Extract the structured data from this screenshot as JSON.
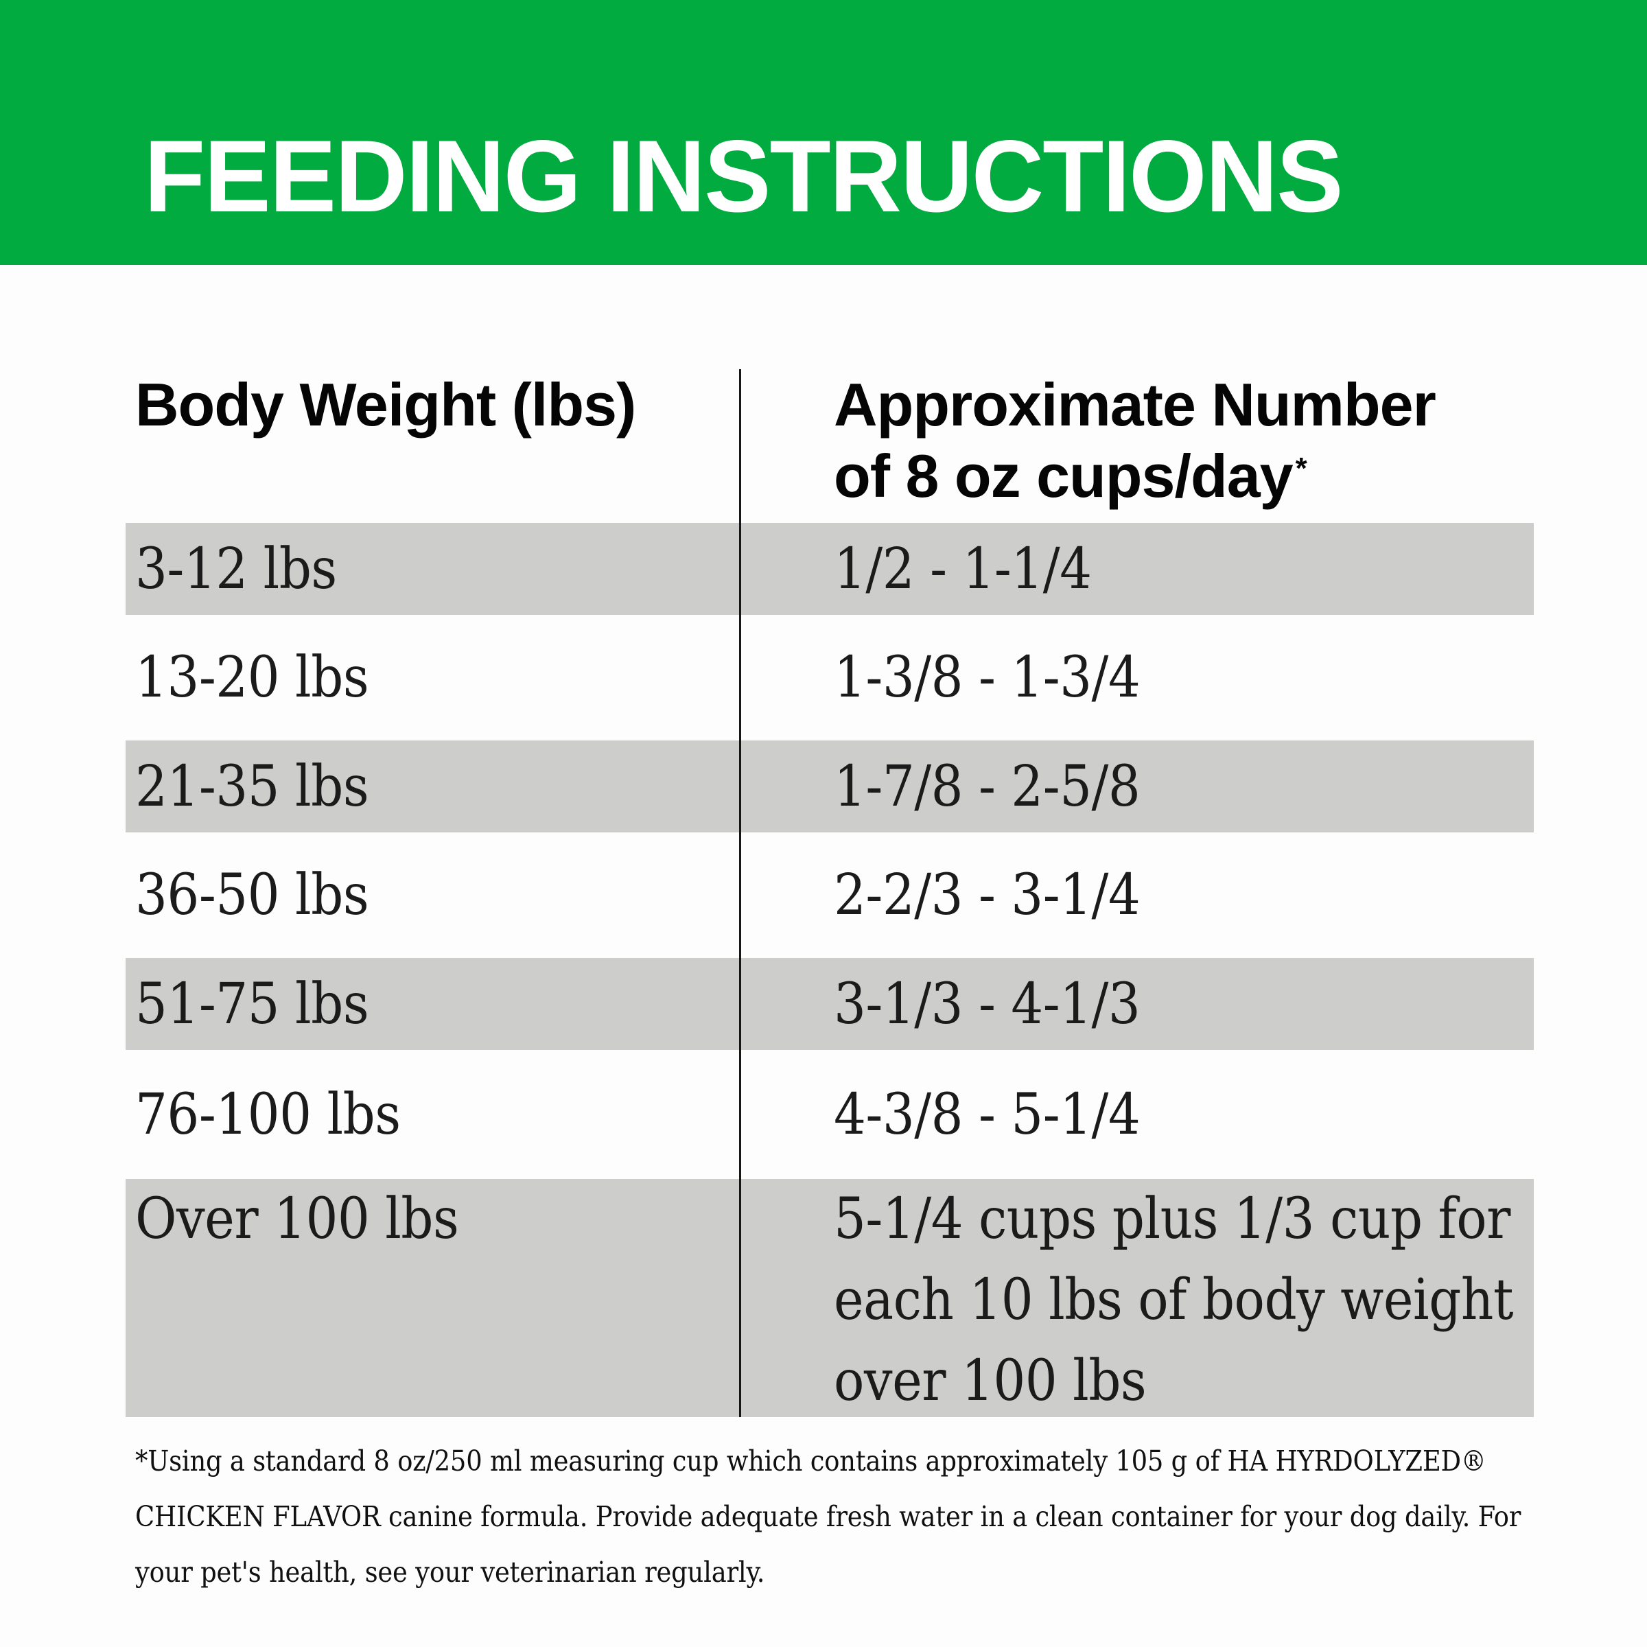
{
  "header": {
    "title": "FEEDING INSTRUCTIONS"
  },
  "table": {
    "columns": [
      {
        "label": "Body Weight (lbs)"
      },
      {
        "label_line1": "Approximate Number",
        "label_line2": "of 8 oz cups/day",
        "marker": "*"
      }
    ],
    "rows": [
      {
        "weight": "3-12 lbs",
        "cups": "1/2 - 1-1/4",
        "shaded": true
      },
      {
        "weight": "13-20 lbs",
        "cups": "1-3/8 - 1-3/4",
        "shaded": false
      },
      {
        "weight": "21-35 lbs",
        "cups": "1-7/8 - 2-5/8",
        "shaded": true
      },
      {
        "weight": "36-50 lbs",
        "cups": "2-2/3 - 3-1/4",
        "shaded": false
      },
      {
        "weight": "51-75 lbs",
        "cups": "3-1/3 - 4-1/3",
        "shaded": true
      },
      {
        "weight": "76-100 lbs",
        "cups": "4-3/8 - 5-1/4",
        "shaded": false
      },
      {
        "weight": "Over 100 lbs",
        "cups": "5-1/4 cups plus 1/3 cup for each 10 lbs of body weight over 100 lbs",
        "shaded": true
      }
    ]
  },
  "footnote": "*Using a standard 8 oz/250 ml measuring cup which contains approximately 105 g of HA HYRDOLYZED® CHICKEN FLAVOR canine formula. Provide adequate fresh water in a clean container for your dog daily. For your pet's health, see your veterinarian regularly.",
  "colors": {
    "banner_green": "#02AB3F",
    "row_shaded_gray": "#CDCDCC",
    "divider_black": "#161616",
    "title_text": "#FFFFFF",
    "body_text": "#1B1B1B"
  }
}
